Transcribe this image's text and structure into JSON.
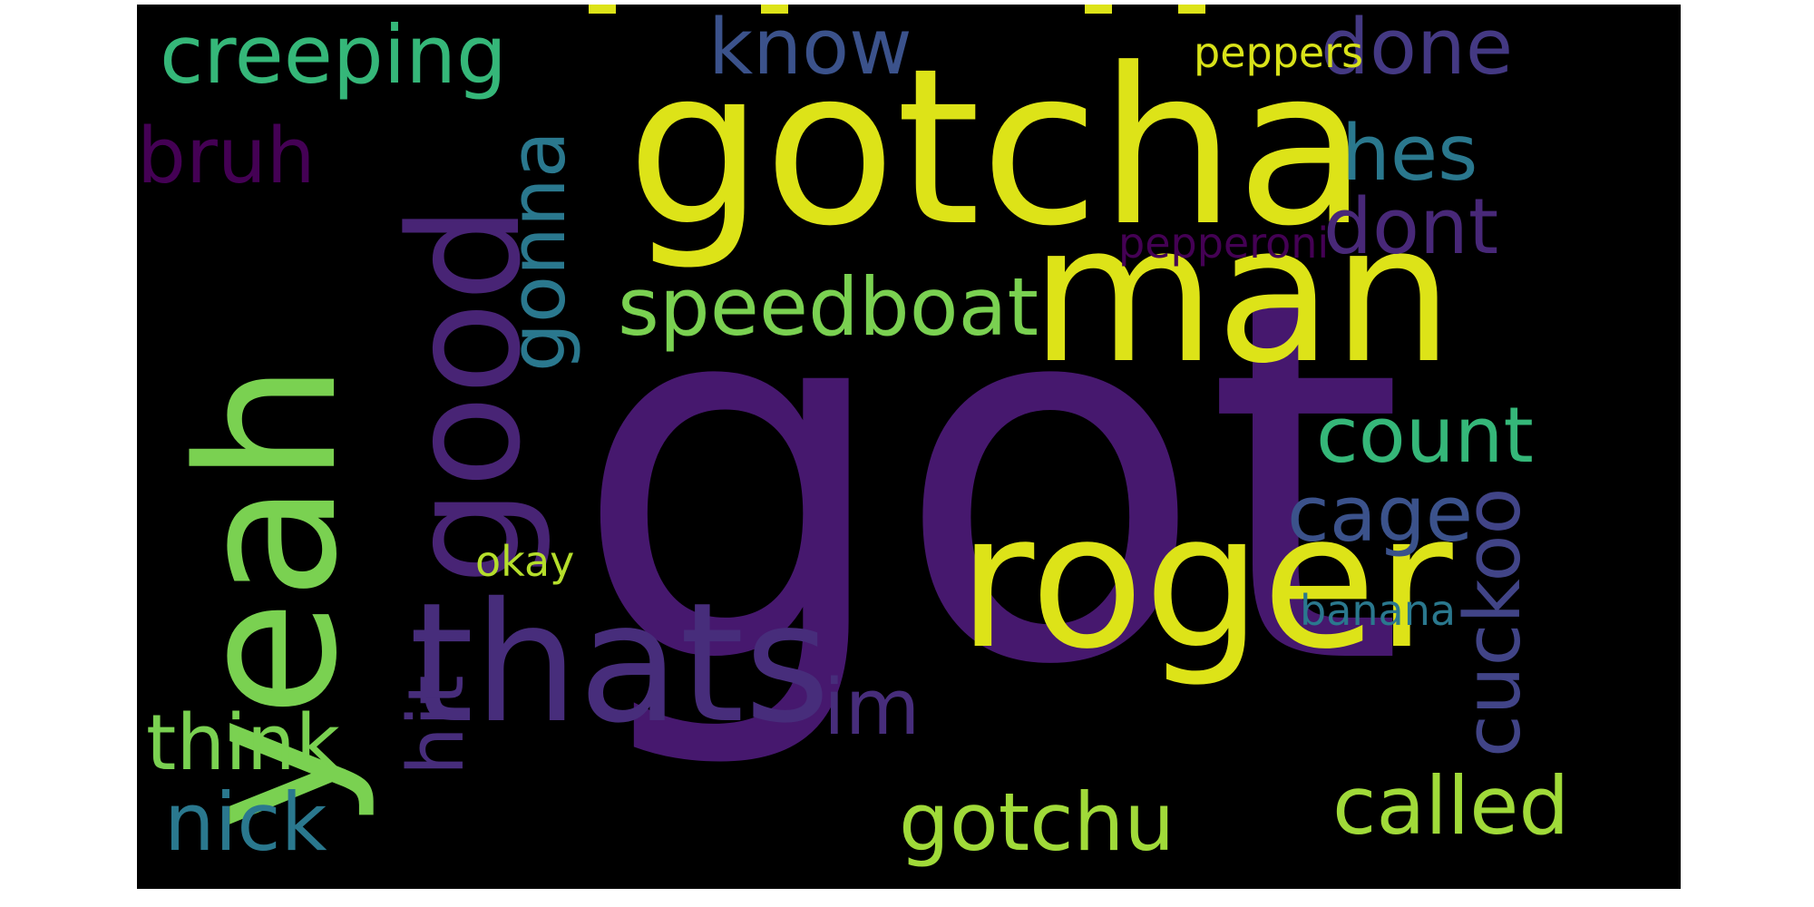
{
  "word_cloud": {
    "background": "#000000",
    "words": [
      {
        "text": "got",
        "color": "#46186e"
      },
      {
        "text": "gotcha",
        "color": "#dde318"
      },
      {
        "text": "man",
        "color": "#dde318"
      },
      {
        "text": "roger",
        "color": "#dde318"
      },
      {
        "text": "yeah",
        "color": "#7ad151"
      },
      {
        "text": "thats",
        "color": "#472d7b"
      },
      {
        "text": "good",
        "color": "#482475"
      },
      {
        "text": "creeping",
        "color": "#35b779"
      },
      {
        "text": "know",
        "color": "#3b528b"
      },
      {
        "text": "done",
        "color": "#443983"
      },
      {
        "text": "peppers",
        "color": "#d8e219"
      },
      {
        "text": "bruh",
        "color": "#440154"
      },
      {
        "text": "hes",
        "color": "#2a788e"
      },
      {
        "text": "gonna",
        "color": "#2a788e"
      },
      {
        "text": "dont",
        "color": "#482878"
      },
      {
        "text": "pepperoni",
        "color": "#440154"
      },
      {
        "text": "speedboat",
        "color": "#7ad151"
      },
      {
        "text": "count",
        "color": "#35b779"
      },
      {
        "text": "cage",
        "color": "#3b528b"
      },
      {
        "text": "cuckoo",
        "color": "#414487"
      },
      {
        "text": "okay",
        "color": "#b5de2b"
      },
      {
        "text": "hit",
        "color": "#472d7b"
      },
      {
        "text": "banana",
        "color": "#2a788e"
      },
      {
        "text": "im",
        "color": "#472d7b"
      },
      {
        "text": "think",
        "color": "#7ad151"
      },
      {
        "text": "nick",
        "color": "#2a788e"
      },
      {
        "text": "gotchu",
        "color": "#a0da39"
      },
      {
        "text": "called",
        "color": "#a0da39"
      }
    ]
  }
}
